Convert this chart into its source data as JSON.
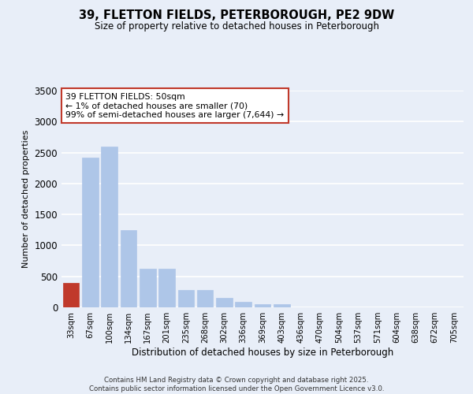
{
  "title": "39, FLETTON FIELDS, PETERBOROUGH, PE2 9DW",
  "subtitle": "Size of property relative to detached houses in Peterborough",
  "xlabel": "Distribution of detached houses by size in Peterborough",
  "ylabel": "Number of detached properties",
  "categories": [
    "33sqm",
    "67sqm",
    "100sqm",
    "134sqm",
    "167sqm",
    "201sqm",
    "235sqm",
    "268sqm",
    "302sqm",
    "336sqm",
    "369sqm",
    "403sqm",
    "436sqm",
    "470sqm",
    "504sqm",
    "537sqm",
    "571sqm",
    "604sqm",
    "638sqm",
    "672sqm",
    "705sqm"
  ],
  "values": [
    390,
    2420,
    2600,
    1250,
    620,
    620,
    285,
    285,
    155,
    85,
    55,
    55,
    0,
    0,
    0,
    0,
    0,
    0,
    0,
    0,
    0
  ],
  "bar_color": "#aec6e8",
  "highlight_color": "#c0392b",
  "highlight_index": 0,
  "annotation_text": "39 FLETTON FIELDS: 50sqm\n← 1% of detached houses are smaller (70)\n99% of semi-detached houses are larger (7,644) →",
  "annotation_box_color": "#ffffff",
  "annotation_box_edge_color": "#c0392b",
  "ylim": [
    0,
    3500
  ],
  "yticks": [
    0,
    500,
    1000,
    1500,
    2000,
    2500,
    3000,
    3500
  ],
  "background_color": "#e8eef8",
  "grid_color": "#ffffff",
  "footer_line1": "Contains HM Land Registry data © Crown copyright and database right 2025.",
  "footer_line2": "Contains public sector information licensed under the Open Government Licence v3.0."
}
